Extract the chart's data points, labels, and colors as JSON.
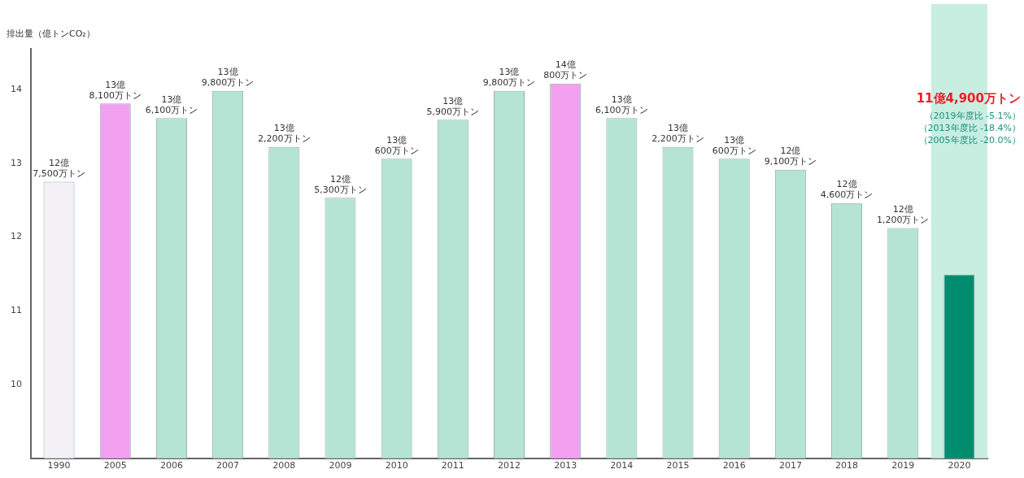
{
  "chart_data": {
    "type": "bar",
    "ylabel": "排出量（億トンCO₂）",
    "categories": [
      "1990",
      "2005",
      "2006",
      "2007",
      "2008",
      "2009",
      "2010",
      "2011",
      "2012",
      "2013",
      "2014",
      "2015",
      "2016",
      "2017",
      "2018",
      "2019",
      "2020"
    ],
    "values": [
      12.75,
      13.81,
      13.61,
      13.98,
      13.22,
      12.53,
      13.06,
      13.59,
      13.98,
      14.08,
      13.61,
      13.22,
      13.06,
      12.91,
      12.46,
      12.12,
      11.49
    ],
    "colors": [
      "#f3f0f6",
      "#f2a0f0",
      "#b5e3d4",
      "#b5e3d4",
      "#b5e3d4",
      "#b5e3d4",
      "#b5e3d4",
      "#b5e3d4",
      "#b5e3d4",
      "#f2a0f0",
      "#b5e3d4",
      "#b5e3d4",
      "#b5e3d4",
      "#b5e3d4",
      "#b5e3d4",
      "#b5e3d4",
      "#008c6e"
    ],
    "ylim": [
      9,
      14.55
    ],
    "yticks": [
      10,
      11,
      12,
      13,
      14
    ],
    "bands": [
      {
        "axis": "x",
        "from": "2020",
        "to": "2020",
        "color": "#c8eee2"
      }
    ],
    "annotations": [
      {
        "text": "12億 7,500万トン",
        "x": "1990",
        "y": 12.75
      },
      {
        "text": "13億 8,100万トン",
        "x": "2005",
        "y": 13.81
      },
      {
        "text": "13億 6,100万トン",
        "x": "2006",
        "y": 13.61
      },
      {
        "text": "13億 9,800万トン",
        "x": "2007",
        "y": 13.98
      },
      {
        "text": "13億 2,200万トン",
        "x": "2008",
        "y": 13.22
      },
      {
        "text": "12億 5,300万トン",
        "x": "2009",
        "y": 12.53
      },
      {
        "text": "13億 600万トン",
        "x": "2010",
        "y": 13.06
      },
      {
        "text": "13億 5,900万トン",
        "x": "2011",
        "y": 13.59
      },
      {
        "text": "13億 9,800万トン",
        "x": "2012",
        "y": 13.98
      },
      {
        "text": "14億 800万トン",
        "x": "2013",
        "y": 14.08
      },
      {
        "text": "13億 6,100万トン",
        "x": "2014",
        "y": 13.61
      },
      {
        "text": "13億 2,200万トン",
        "x": "2015",
        "y": 13.22
      },
      {
        "text": "13億 600万トン",
        "x": "2016",
        "y": 13.06
      },
      {
        "text": "12億 9,100万トン",
        "x": "2017",
        "y": 12.91
      },
      {
        "text": "12億 4,600万トン",
        "x": "2018",
        "y": 12.46
      },
      {
        "text": "12億 1,200万トン",
        "x": "2019",
        "y": 12.12
      },
      "11億4,900万トン",
      "（2019年度比 -5.1%）",
      "（2013年度比 -18.4%）",
      "（2005年度比 -20.0%）"
    ],
    "grid": false,
    "legend": false
  }
}
